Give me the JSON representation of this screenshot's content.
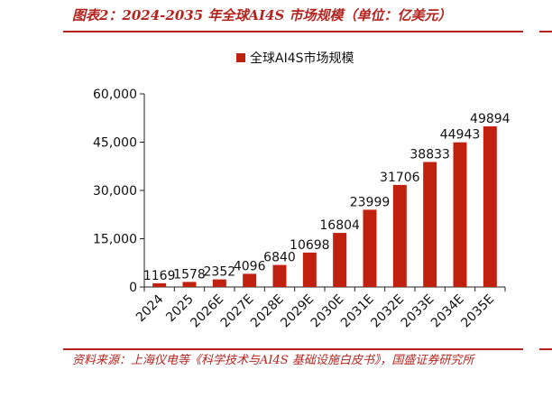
{
  "figure": {
    "title": "图表2：2024-2035 年全球AI4S 市场规模（单位：亿美元）",
    "source": "资料来源：上海仪电等《科学技术与AI4S 基础设施白皮书》，国盛证券研究所"
  },
  "chart_data": {
    "type": "bar",
    "categories": [
      "2024",
      "2025",
      "2026E",
      "2027E",
      "2028E",
      "2029E",
      "2030E",
      "2031E",
      "2032E",
      "2033E",
      "2034E",
      "2035E"
    ],
    "series": [
      {
        "name": "全球AI4S市场规模",
        "values": [
          1169,
          1578,
          2352,
          4096,
          6840,
          10698,
          16804,
          23999,
          31706,
          38833,
          44943,
          49894
        ]
      }
    ],
    "ylim": [
      0,
      60000
    ],
    "yticks": [
      0,
      15000,
      30000,
      45000,
      60000
    ],
    "ytick_labels": [
      "0",
      "15,000",
      "30,000",
      "45,000",
      "60,000"
    ],
    "legend_position": "top-center",
    "grid": false,
    "bar_color": "#c0210e"
  }
}
